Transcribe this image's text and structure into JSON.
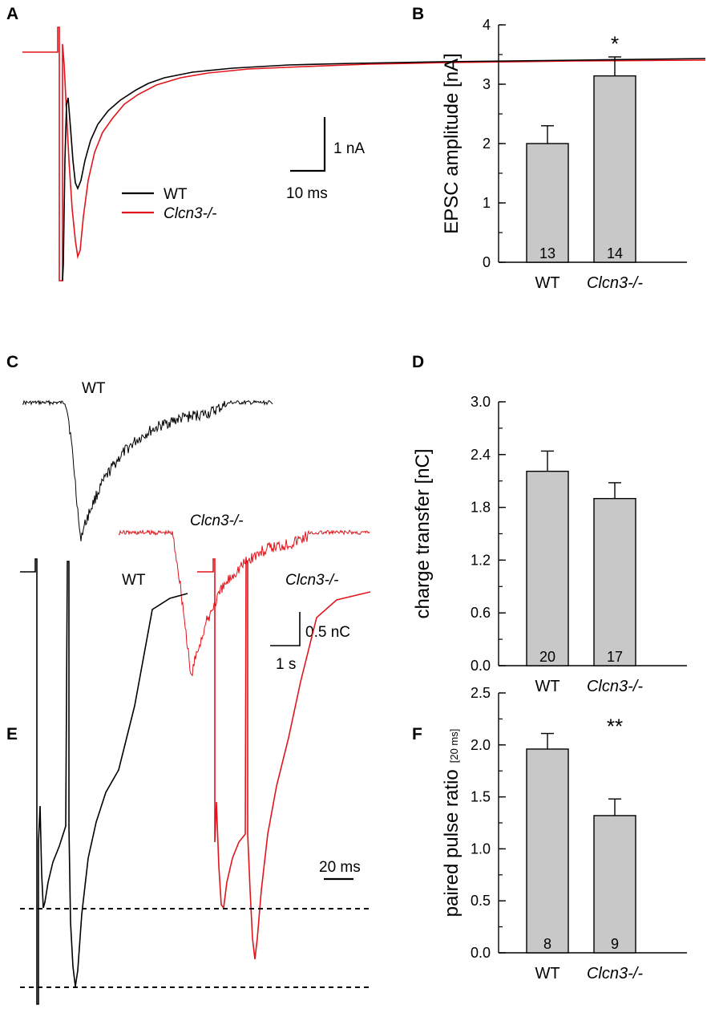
{
  "panels": {
    "a": {
      "label": "A"
    },
    "b": {
      "label": "B"
    },
    "c": {
      "label": "C"
    },
    "d": {
      "label": "D"
    },
    "e": {
      "label": "E"
    },
    "f": {
      "label": "F"
    }
  },
  "colors": {
    "wt": "#000000",
    "ko": "#e3141b",
    "bar_fill": "#c8c8c8",
    "bar_stroke": "#000000"
  },
  "traces": {
    "a": {
      "legend": [
        "WT",
        "Clcn3-/-"
      ],
      "scale_y_label": "1 nA",
      "scale_x_label": "10 ms"
    },
    "c": {
      "wt_label": "WT",
      "ko_label": "Clcn3-/-",
      "scale_y_label": "0.5 nC",
      "scale_x_label": "1 s"
    },
    "e": {
      "wt_label": "WT",
      "ko_label": "Clcn3-/-",
      "scale_x_label": "20 ms"
    }
  },
  "chart_data": [
    {
      "id": "b",
      "type": "bar",
      "categories": [
        "WT",
        "Clcn3-/-"
      ],
      "values": [
        2.0,
        3.14
      ],
      "errors": [
        0.3,
        0.32
      ],
      "n": [
        "13",
        "14"
      ],
      "significance": [
        "",
        "*"
      ],
      "ylabel": "EPSC amplitude [nA]",
      "ylabel_sub": "",
      "ylim": [
        0,
        4
      ],
      "yticks": [
        0,
        1,
        2,
        3,
        4
      ],
      "ytick_labels": [
        "0",
        "1",
        "2",
        "3",
        "4"
      ],
      "minor_step": 0.5
    },
    {
      "id": "d",
      "type": "bar",
      "categories": [
        "WT",
        "Clcn3-/-"
      ],
      "values": [
        2.21,
        1.9
      ],
      "errors": [
        0.23,
        0.18
      ],
      "n": [
        "20",
        "17"
      ],
      "significance": [
        "",
        ""
      ],
      "ylabel": "charge transfer [nC]",
      "ylabel_sub": "",
      "ylim": [
        0,
        3.0
      ],
      "yticks": [
        0,
        0.6,
        1.2,
        1.8,
        2.4,
        3.0
      ],
      "ytick_labels": [
        "0.0",
        "0.6",
        "1.2",
        "1.8",
        "2.4",
        "3.0"
      ],
      "minor_step": 0.3
    },
    {
      "id": "f",
      "type": "bar",
      "categories": [
        "WT",
        "Clcn3-/-"
      ],
      "values": [
        1.96,
        1.32
      ],
      "errors": [
        0.15,
        0.16
      ],
      "n": [
        "8",
        "9"
      ],
      "significance": [
        "",
        "**"
      ],
      "ylabel": "paired pulse ratio",
      "ylabel_sub": "[20 ms]",
      "ylim": [
        0,
        2.5
      ],
      "yticks": [
        0,
        0.5,
        1.0,
        1.5,
        2.0,
        2.5
      ],
      "ytick_labels": [
        "0.0",
        "0.5",
        "1.0",
        "1.5",
        "2.0",
        "2.5"
      ],
      "minor_step": 0.25
    }
  ]
}
